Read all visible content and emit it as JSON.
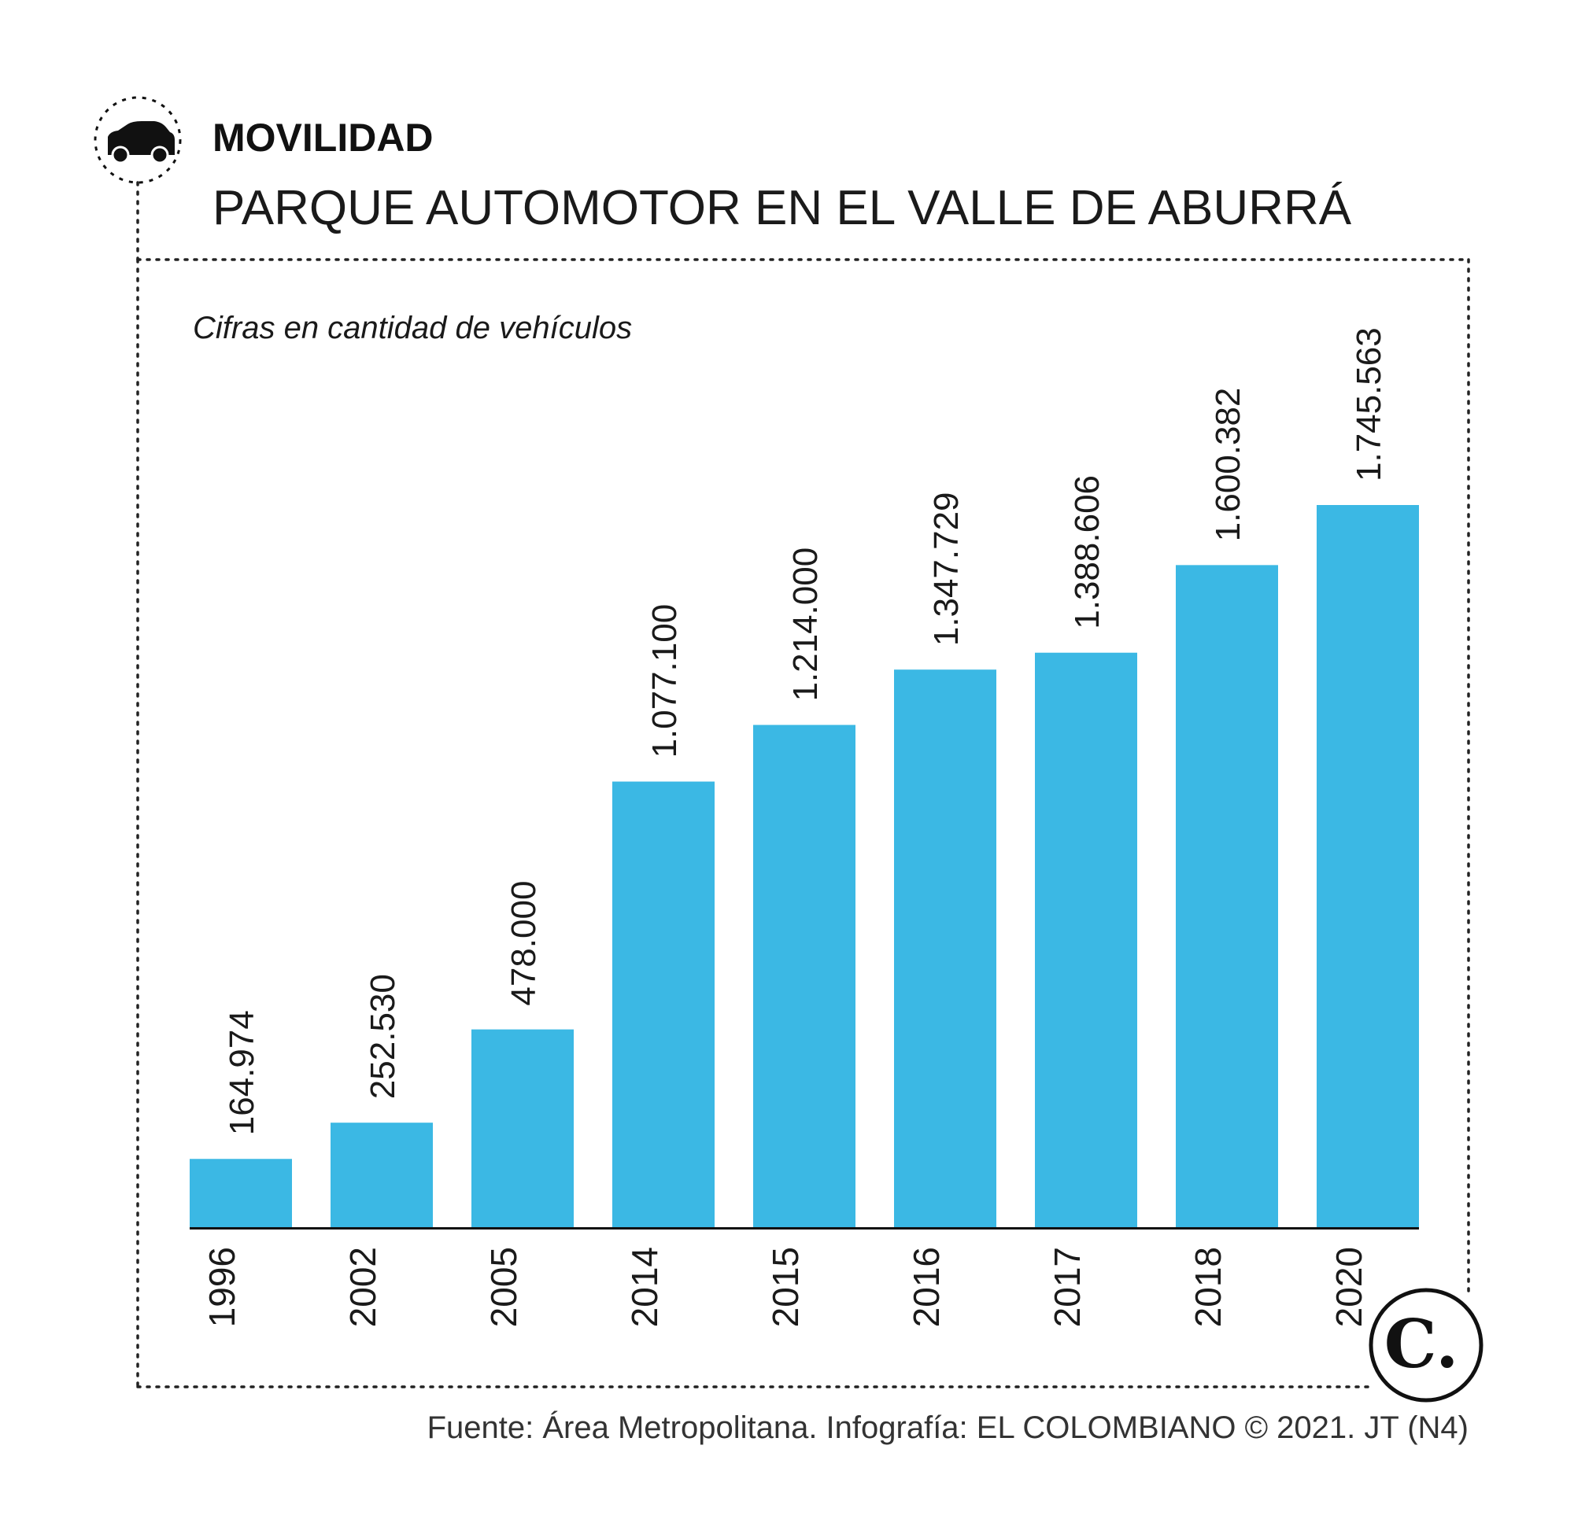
{
  "header": {
    "kicker": "MOVILIDAD",
    "title": "PARQUE AUTOMOTOR EN EL VALLE DE ABURRÁ",
    "kicker_icon": "car-icon"
  },
  "footer": {
    "source": "Fuente: Área Metropolitana. Infografía: EL COLOMBIANO © 2021. JT (N4)",
    "logo_text": "C.",
    "logo_icon": "el-colombiano-logo"
  },
  "colors": {
    "bar": "#3bb8e4",
    "axis": "#111111",
    "border": "#222222"
  },
  "chart_data": {
    "type": "bar",
    "subtitle": "Cifras en cantidad de vehículos",
    "categories": [
      "1996",
      "2002",
      "2005",
      "2014",
      "2015",
      "2016",
      "2017",
      "2018",
      "2020"
    ],
    "values": [
      164974,
      252530,
      478000,
      1077100,
      1214000,
      1347729,
      1388606,
      1600382,
      1745563
    ],
    "value_labels": [
      "164.974",
      "252.530",
      "478.000",
      "1.077.100",
      "1.214.000",
      "1.347.729",
      "1.388.606",
      "1.600.382",
      "1.745.563"
    ],
    "ylim": [
      0,
      1745563
    ],
    "grid": false,
    "legend": "none"
  }
}
